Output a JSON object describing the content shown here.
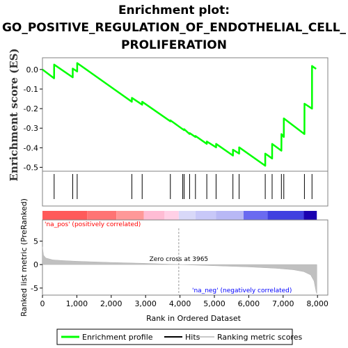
{
  "title_line1": "Enrichment plot:",
  "title_line2": "GO_POSITIVE_REGULATION_OF_ENDOTHELIAL_CELL_",
  "title_line3": "PROLIFERATION",
  "chart_data": {
    "type": "line",
    "es_panel": {
      "ylabel": "Enrichment score (ES)",
      "ylim": [
        -0.52,
        0.06
      ],
      "yticks": [
        "0.0",
        "-0.1",
        "-0.2",
        "-0.3",
        "-0.4",
        "-0.5"
      ],
      "ytick_values": [
        0.0,
        -0.1,
        -0.2,
        -0.3,
        -0.4,
        -0.5
      ],
      "series": [
        {
          "name": "Enrichment profile",
          "color": "#00ff00",
          "x": [
            0,
            339,
            340,
            880,
            881,
            1010,
            1011,
            2600,
            2601,
            2900,
            2901,
            3720,
            3721,
            4080,
            4081,
            4120,
            4121,
            4280,
            4281,
            4450,
            4451,
            4780,
            4781,
            5050,
            5051,
            5540,
            5541,
            5720,
            5721,
            6480,
            6481,
            6680,
            6681,
            6950,
            6951,
            7020,
            7021,
            7620,
            7621,
            7840,
            7841,
            7960
          ],
          "y": [
            0.0,
            -0.045,
            0.025,
            -0.04,
            0.005,
            -0.01,
            0.033,
            -0.165,
            -0.145,
            -0.18,
            -0.165,
            -0.265,
            -0.26,
            -0.305,
            -0.305,
            -0.31,
            -0.305,
            -0.33,
            -0.325,
            -0.345,
            -0.34,
            -0.38,
            -0.368,
            -0.398,
            -0.38,
            -0.44,
            -0.41,
            -0.43,
            -0.398,
            -0.492,
            -0.43,
            -0.455,
            -0.38,
            -0.415,
            -0.33,
            -0.345,
            -0.25,
            -0.33,
            -0.175,
            -0.2,
            0.018,
            0.003
          ]
        }
      ]
    },
    "hits_x": [
      340,
      880,
      1010,
      2600,
      2900,
      3720,
      4080,
      4120,
      4280,
      4450,
      4780,
      5050,
      5540,
      5720,
      6480,
      6680,
      6950,
      7020,
      7620,
      7840
    ],
    "metric_panel": {
      "ylabel": "Ranked list metric (PreRanked)",
      "ylim": [
        -6.5,
        9.5
      ],
      "yticks": [
        "5",
        "0",
        "-5"
      ],
      "ytick_values": [
        5,
        0,
        -5
      ],
      "zero_cross_rank": 3965,
      "zero_cross_label": "Zero cross at 3965",
      "pos_label": "'na_pos' (positively correlated)",
      "neg_label": "'na_neg' (negatively correlated)",
      "metric_curve_ranks": [
        0,
        30,
        100,
        300,
        600,
        1000,
        2000,
        3000,
        3965,
        5000,
        6000,
        6800,
        7300,
        7600,
        7800,
        7900,
        7960,
        7980
      ],
      "metric_curve_values": [
        3.8,
        2.0,
        1.4,
        1.0,
        0.85,
        0.7,
        0.45,
        0.25,
        0.0,
        -0.25,
        -0.5,
        -0.8,
        -1.1,
        -1.5,
        -2.2,
        -3.5,
        -5.8,
        -6.2
      ]
    },
    "xlabel": "Rank in Ordered Dataset",
    "xlim": [
      0,
      8300
    ],
    "xticks": [
      "0",
      "1,000",
      "2,000",
      "3,000",
      "4,000",
      "5,000",
      "6,000",
      "7,000",
      "8,000"
    ],
    "xtick_values": [
      0,
      1000,
      2000,
      3000,
      4000,
      5000,
      6000,
      7000,
      8000
    ],
    "colorbar": {
      "max_rank": 7980,
      "segments": [
        {
          "end": 1300,
          "color": "#ff5a5a"
        },
        {
          "end": 2150,
          "color": "#ff7474"
        },
        {
          "end": 2950,
          "color": "#ff9898"
        },
        {
          "end": 3550,
          "color": "#ffbcd4"
        },
        {
          "end": 3965,
          "color": "#ffd0e6"
        },
        {
          "end": 4450,
          "color": "#d8d8f8"
        },
        {
          "end": 5050,
          "color": "#c8c8f8"
        },
        {
          "end": 5850,
          "color": "#b8b8f5"
        },
        {
          "end": 6550,
          "color": "#6a6af0"
        },
        {
          "end": 7600,
          "color": "#4040e0"
        },
        {
          "end": 7980,
          "color": "#1a00b0"
        }
      ]
    },
    "legend": [
      {
        "label": "Enrichment profile",
        "color": "#00ff00"
      },
      {
        "label": "Hits",
        "color": "#000000"
      },
      {
        "label": "Ranking metric scores",
        "color": "#c8c8c8"
      }
    ],
    "grid": false,
    "legend_placement": "bottom"
  }
}
